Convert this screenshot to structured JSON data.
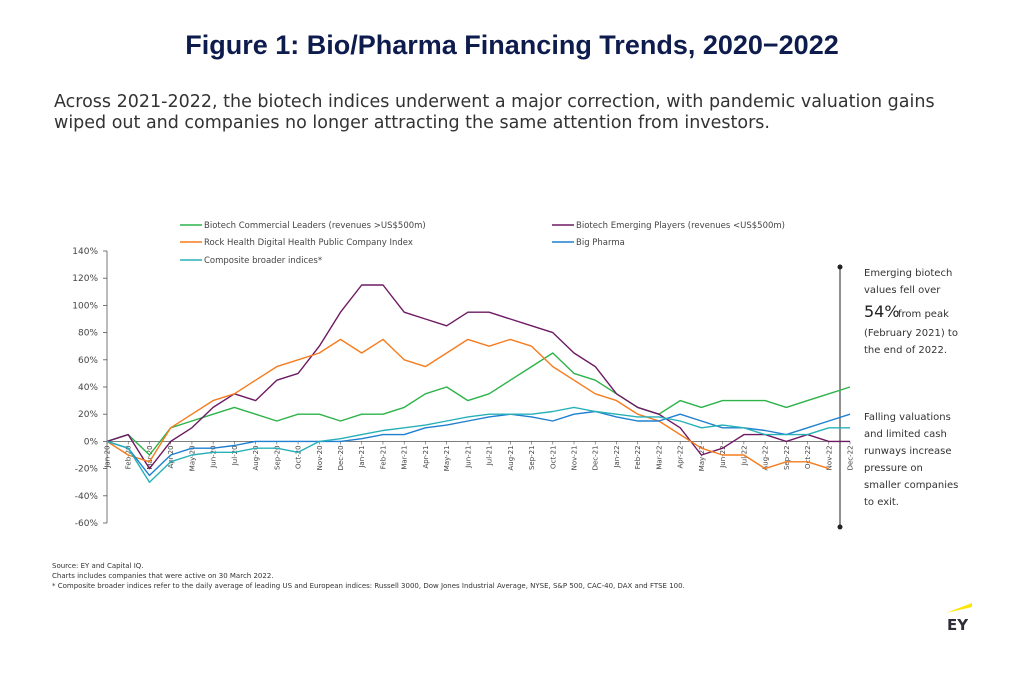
{
  "chart_data": {
    "type": "line",
    "title": "Figure 1: Bio/Pharma Financing Trends, 2020−2022",
    "subtitle": "Across 2021-2022, the biotech indices underwent a major correction, with pandemic valuation gains wiped out and companies no longer attracting the same attention from investors.",
    "categories": [
      "Jan-20",
      "Feb-20",
      "Mar-20",
      "Apr-20",
      "May-20",
      "Jun-20",
      "Jul-20",
      "Aug-20",
      "Sep-20",
      "Oct-20",
      "Nov-20",
      "Dec-20",
      "Jan-21",
      "Feb-21",
      "Mar-21",
      "Apr-21",
      "May-21",
      "Jun-21",
      "Jul-21",
      "Aug-21",
      "Sep-21",
      "Oct-21",
      "Nov-21",
      "Dec-21",
      "Jan-22",
      "Feb-22",
      "Mar-22",
      "Apr-22",
      "May-22",
      "Jun-22",
      "Jul-22",
      "Aug-22",
      "Sep-22",
      "Oct-22",
      "Nov-22",
      "Dec-22"
    ],
    "series": [
      {
        "name": "Biotech Commercial Leaders (revenues >US$500m)",
        "color": "#2db34a",
        "values": [
          0,
          5,
          -10,
          10,
          15,
          20,
          25,
          20,
          15,
          20,
          20,
          15,
          20,
          20,
          25,
          35,
          40,
          30,
          35,
          45,
          55,
          65,
          50,
          45,
          35,
          25,
          20,
          30,
          25,
          30,
          30,
          30,
          25,
          30,
          35,
          40
        ]
      },
      {
        "name": "Biotech Emerging Players (revenues <US$500m)",
        "color": "#6e1a63",
        "values": [
          0,
          5,
          -20,
          0,
          10,
          25,
          35,
          30,
          45,
          50,
          70,
          95,
          115,
          115,
          95,
          90,
          85,
          95,
          95,
          90,
          85,
          80,
          65,
          55,
          35,
          25,
          20,
          10,
          -10,
          -5,
          5,
          5,
          0,
          5,
          0,
          0
        ]
      },
      {
        "name": "Rock Health Digital Health Public Company Index",
        "color": "#f57c1f",
        "values": [
          0,
          -10,
          -15,
          10,
          20,
          30,
          35,
          45,
          55,
          60,
          65,
          75,
          65,
          75,
          60,
          55,
          65,
          75,
          70,
          75,
          70,
          55,
          45,
          35,
          30,
          20,
          15,
          5,
          -5,
          -10,
          -10,
          -20,
          -15,
          -15,
          -20,
          null
        ]
      },
      {
        "name": "Big Pharma",
        "color": "#1f7fd0",
        "values": [
          0,
          -5,
          -25,
          -10,
          -5,
          -5,
          -3,
          0,
          0,
          0,
          0,
          0,
          2,
          5,
          5,
          10,
          12,
          15,
          18,
          20,
          18,
          15,
          20,
          22,
          18,
          15,
          15,
          20,
          15,
          10,
          10,
          8,
          5,
          10,
          15,
          20
        ]
      },
      {
        "name": "Composite broader indices*",
        "color": "#27b0b8",
        "values": [
          0,
          -5,
          -30,
          -15,
          -10,
          -8,
          -8,
          -5,
          -5,
          -8,
          0,
          2,
          5,
          8,
          10,
          12,
          15,
          18,
          20,
          20,
          20,
          22,
          25,
          22,
          20,
          18,
          18,
          15,
          10,
          12,
          10,
          5,
          5,
          5,
          10,
          10
        ]
      }
    ],
    "ylim": [
      -60,
      140
    ],
    "yticks": [
      {
        "value": -60,
        "label": "-60%"
      },
      {
        "value": -40,
        "label": "-40%"
      },
      {
        "value": -20,
        "label": "-20%"
      },
      {
        "value": 0,
        "label": "0%"
      },
      {
        "value": 20,
        "label": "20%"
      },
      {
        "value": 40,
        "label": "40%"
      },
      {
        "value": 60,
        "label": "60%"
      },
      {
        "value": 80,
        "label": "80%"
      },
      {
        "value": 100,
        "label": "100%"
      },
      {
        "value": 120,
        "label": "120%"
      },
      {
        "value": 140,
        "label": "140%"
      }
    ],
    "annotations": [
      "Emerging biotech",
      "values fell over",
      "54%",
      "from peak",
      "(February 2021) to",
      "the end of 2022.",
      "Falling valuations",
      "and limited cash",
      "runways increase",
      "pressure on",
      "smaller companies",
      "to exit."
    ],
    "notes": [
      "Source: EY and Capital IQ.",
      "Charts includes companies that were active on 30 March 2022.",
      "* Composite broader indices refer to the daily average of leading US and European indices: Russell 3000, Dow Jones Industrial Average, NYSE, S&P 500, CAC-40, DAX and FTSE 100."
    ],
    "logo": "EY"
  }
}
